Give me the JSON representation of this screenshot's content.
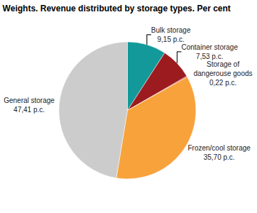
{
  "chart_data": {
    "type": "pie",
    "title": "Weights. Revenue distributed by storage types. Per cent",
    "categories": [
      "Bulk storage",
      "Container storage",
      "Storage of dangerouse goods",
      "Frozen/cool storage",
      "General storage"
    ],
    "values": [
      9.15,
      7.53,
      0.22,
      35.7,
      47.41
    ],
    "value_labels": [
      "9,15 p.c.",
      "7,53 p.c.",
      "0,22 p.c.",
      "35,70 p.c.",
      "47,41 p.c."
    ],
    "colors": [
      "#13999a",
      "#9b1b1f",
      "#d03a2a",
      "#f7a23b",
      "#cccccc"
    ],
    "data_labels": true
  }
}
